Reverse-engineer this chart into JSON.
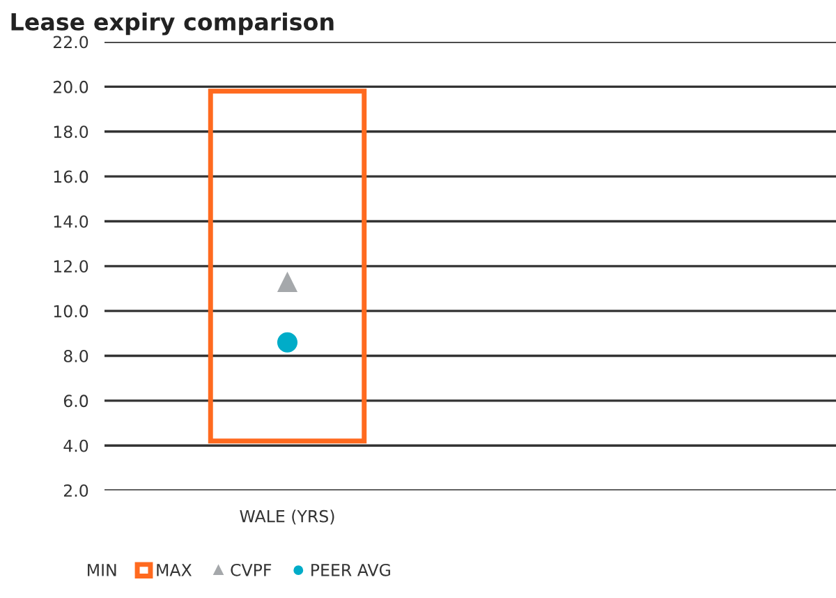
{
  "chart_data": {
    "type": "bar",
    "title": "Lease expiry comparison",
    "categories": [
      "WALE (YRS)"
    ],
    "legend_title": "MIN",
    "series": [
      {
        "name": "MAX",
        "color": "#ff6a1f",
        "base": [
          4.2
        ],
        "values": [
          15.6
        ]
      },
      {
        "name": "CVPF",
        "type": "scatter",
        "marker": "triangle",
        "color": "#a5a8ab",
        "x": [
          "WALE (YRS)"
        ],
        "values": [
          11.3
        ]
      },
      {
        "name": "PEER AVG",
        "type": "scatter",
        "marker": "circle",
        "color": "#00acc8",
        "x": [
          "WALE (YRS)"
        ],
        "values": [
          8.6
        ]
      }
    ],
    "ylim": [
      2,
      22
    ],
    "yticks": [
      {
        "value": 2,
        "label": "2.0"
      },
      {
        "value": 4,
        "label": "4.0"
      },
      {
        "value": 6,
        "label": "6.0"
      },
      {
        "value": 8,
        "label": "8.0"
      },
      {
        "value": 10,
        "label": "10.0"
      },
      {
        "value": 12,
        "label": "12.0"
      },
      {
        "value": 14,
        "label": "14.0"
      },
      {
        "value": 16,
        "label": "16.0"
      },
      {
        "value": 18,
        "label": "18.0"
      },
      {
        "value": 20,
        "label": "20.0"
      },
      {
        "value": 22,
        "label": "22.0"
      }
    ],
    "grid": "y",
    "legend": "bottom"
  }
}
